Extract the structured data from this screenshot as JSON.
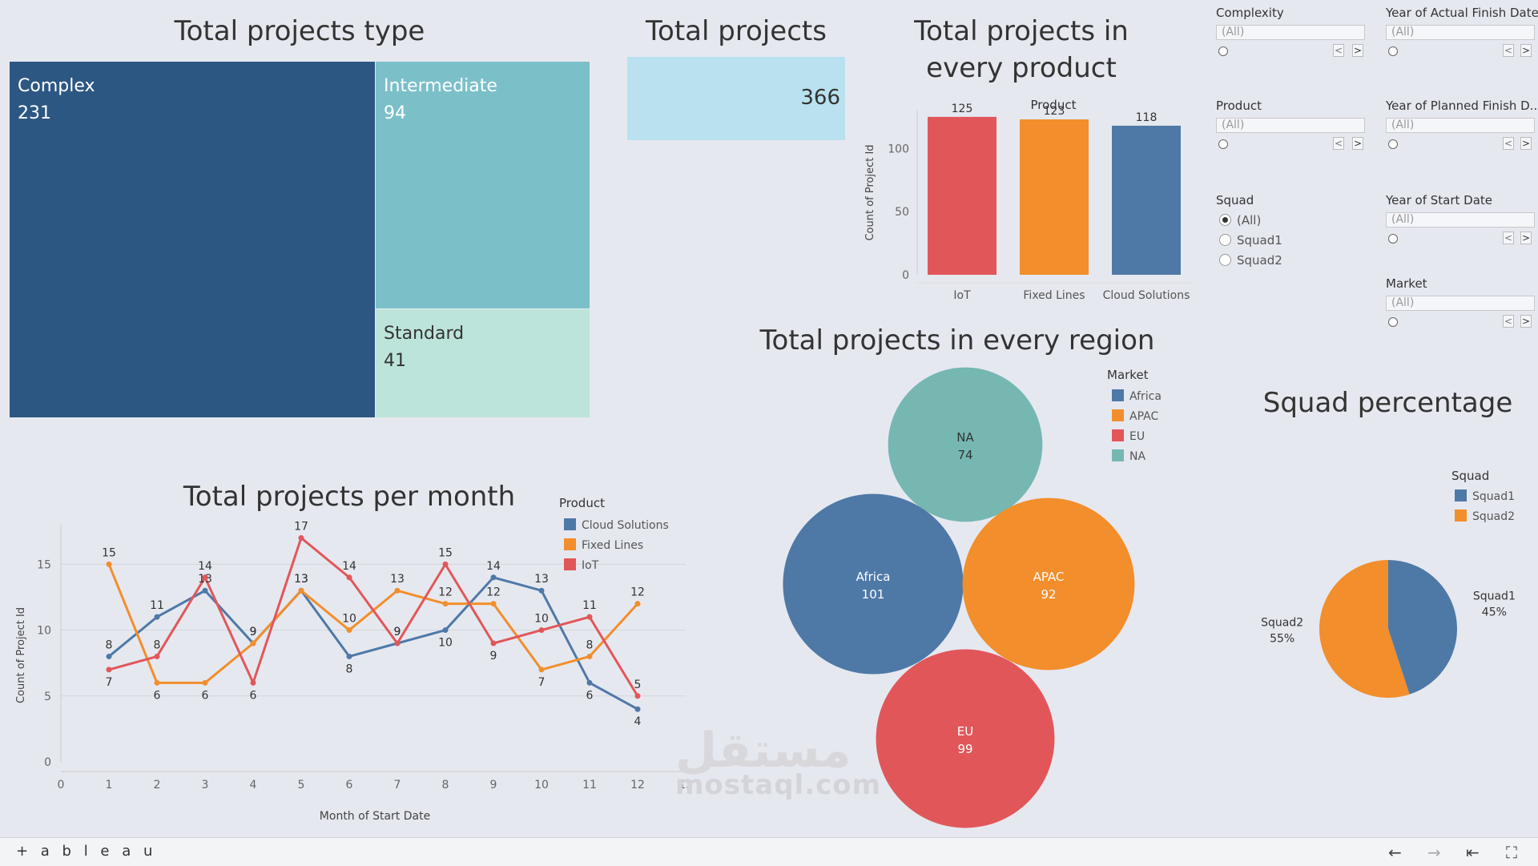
{
  "treemap": {
    "title": "Total projects type",
    "items": [
      {
        "label": "Complex",
        "value": "231",
        "color": "#2c5783"
      },
      {
        "label": "Intermediate",
        "value": "94",
        "color": "#7bbfc9"
      },
      {
        "label": "Standard",
        "value": "41",
        "color": "#bde4da"
      }
    ]
  },
  "kpi": {
    "title": "Total projects",
    "value": "366"
  },
  "filters": {
    "complexity": {
      "label": "Complexity",
      "value": "(All)"
    },
    "product": {
      "label": "Product",
      "value": "(All)"
    },
    "squad": {
      "label": "Squad",
      "options": [
        "(All)",
        "Squad1",
        "Squad2"
      ],
      "selected": "(All)"
    },
    "actual_finish": {
      "label": "Year of Actual Finish Date",
      "value": "(All)"
    },
    "planned_finish": {
      "label": "Year of Planned Finish D...",
      "value": "(All)"
    },
    "start_date": {
      "label": "Year of Start Date",
      "value": "(All)"
    },
    "market": {
      "label": "Market",
      "value": "(All)"
    },
    "nav_prev": "<",
    "nav_next": ">"
  },
  "region_title": "Total projects in every region",
  "bottom": {
    "brand": "+ a b l e a u",
    "watermark_ar": "مستقل",
    "watermark": "mostaql.com",
    "nav": {
      "back": "←",
      "forward": "→",
      "first": "⇤",
      "fullscreen": "⛶"
    }
  },
  "chart_data": [
    {
      "type": "bar",
      "title": "Total projects in every product",
      "header": "Product",
      "ylabel": "Count of Project Id",
      "categories": [
        "IoT",
        "Fixed Lines",
        "Cloud Solutions"
      ],
      "values": [
        125,
        123,
        118
      ],
      "colors": [
        "#e15759",
        "#f28e2b",
        "#4e79a7"
      ],
      "ylim": [
        0,
        130
      ],
      "yticks": [
        0,
        50,
        100
      ]
    },
    {
      "type": "line",
      "title": "Total projects per month",
      "xlabel": "Month of Start Date",
      "ylabel": "Count of Project Id",
      "legend_title": "Product",
      "x": [
        1,
        2,
        3,
        4,
        5,
        6,
        7,
        8,
        9,
        10,
        11,
        12
      ],
      "xlim": [
        0,
        13
      ],
      "ylim": [
        0,
        18
      ],
      "yticks": [
        0,
        5,
        10,
        15
      ],
      "series": [
        {
          "name": "Cloud Solutions",
          "color": "#4e79a7",
          "values": [
            8,
            11,
            13,
            9,
            13,
            8,
            9,
            10,
            14,
            13,
            6,
            4
          ]
        },
        {
          "name": "Fixed Lines",
          "color": "#f28e2b",
          "values": [
            15,
            6,
            6,
            9,
            13,
            10,
            13,
            12,
            12,
            7,
            8,
            12
          ]
        },
        {
          "name": "IoT",
          "color": "#e15759",
          "values": [
            7,
            8,
            14,
            6,
            17,
            14,
            9,
            15,
            9,
            10,
            11,
            5
          ]
        }
      ]
    },
    {
      "type": "bubble",
      "title": "Total projects in every region",
      "legend_title": "Market",
      "items": [
        {
          "label": "NA",
          "value": 74,
          "color": "#76b7b2"
        },
        {
          "label": "Africa",
          "value": 101,
          "color": "#4e79a7"
        },
        {
          "label": "APAC",
          "value": 92,
          "color": "#f28e2b"
        },
        {
          "label": "EU",
          "value": 99,
          "color": "#e15759"
        }
      ],
      "legend": [
        {
          "label": "Africa",
          "color": "#4e79a7"
        },
        {
          "label": "APAC",
          "color": "#f28e2b"
        },
        {
          "label": "EU",
          "color": "#e15759"
        },
        {
          "label": "NA",
          "color": "#76b7b2"
        }
      ]
    },
    {
      "type": "pie",
      "title": "Squad percentage",
      "legend_title": "Squad",
      "slices": [
        {
          "label": "Squad1",
          "value": 45,
          "text": "45%",
          "color": "#4e79a7"
        },
        {
          "label": "Squad2",
          "value": 55,
          "text": "55%",
          "color": "#f28e2b"
        }
      ]
    }
  ]
}
